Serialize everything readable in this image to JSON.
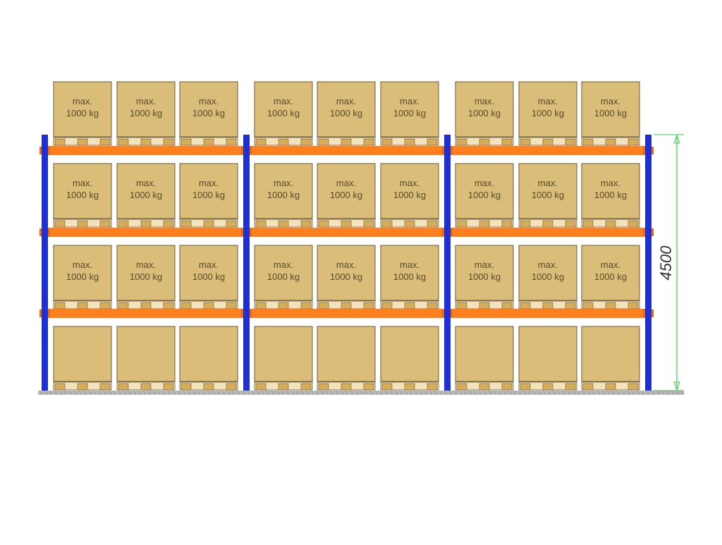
{
  "diagram": {
    "box_line1": "max.",
    "box_line2": "1000 kg",
    "dimension": "4500",
    "bays": 3,
    "pallets_per_bay": 3,
    "labeled_levels": 3,
    "total_levels": 4,
    "colors": {
      "upright": "#1f2fd6",
      "beam": "#ff7f1e",
      "box_fill": "#d9bd79",
      "box_stroke": "#6b5a36",
      "pallet": "#d6ad5a",
      "dimension_line": "#3cc94a",
      "floor": "#b9b9b9"
    }
  }
}
